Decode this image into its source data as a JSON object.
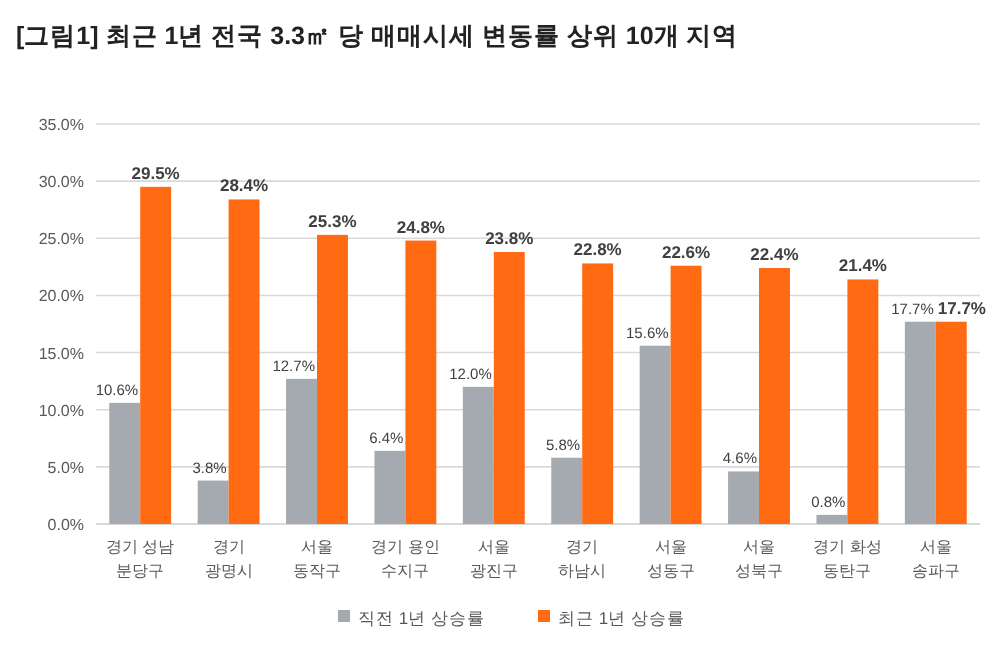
{
  "chart_data": {
    "type": "bar",
    "title": "[그림1] 최근 1년 전국 3.3㎡  당 매매시세 변동률 상위 10개 지역",
    "categories": [
      "경기 성남\n분당구",
      "경기\n광명시",
      "서울\n동작구",
      "경기 용인\n수지구",
      "서울\n광진구",
      "경기\n하남시",
      "서울\n성동구",
      "서울\n성북구",
      "경기 화성\n동탄구",
      "서울\n송파구"
    ],
    "series": [
      {
        "name": "직전 1년 상승률",
        "color": "#a5a9b0",
        "values": [
          10.6,
          3.8,
          12.7,
          6.4,
          12.0,
          5.8,
          15.6,
          4.6,
          0.8,
          17.7
        ],
        "value_labels": [
          "10.6%",
          "3.8%",
          "12.7%",
          "6.4%",
          "12.0%",
          "5.8%",
          "15.6%",
          "4.6%",
          "0.8%",
          "17.7%"
        ]
      },
      {
        "name": "최근 1년 상승률",
        "color": "#ff6a13",
        "values": [
          29.5,
          28.4,
          25.3,
          24.8,
          23.8,
          22.8,
          22.6,
          22.4,
          21.4,
          17.7
        ],
        "value_labels": [
          "29.5%",
          "28.4%",
          "25.3%",
          "24.8%",
          "23.8%",
          "22.8%",
          "22.6%",
          "22.4%",
          "21.4%",
          "17.7%"
        ]
      }
    ],
    "ylim": [
      0,
      35
    ],
    "yticks": [
      {
        "value": 0,
        "label": "0.0%"
      },
      {
        "value": 5,
        "label": "5.0%"
      },
      {
        "value": 10,
        "label": "10.0%"
      },
      {
        "value": 15,
        "label": "15.0%"
      },
      {
        "value": 20,
        "label": "20.0%"
      },
      {
        "value": 25,
        "label": "25.0%"
      },
      {
        "value": 30,
        "label": "30.0%"
      },
      {
        "value": 35,
        "label": "35.0%"
      }
    ],
    "grid": "y",
    "legend": "bottom"
  }
}
